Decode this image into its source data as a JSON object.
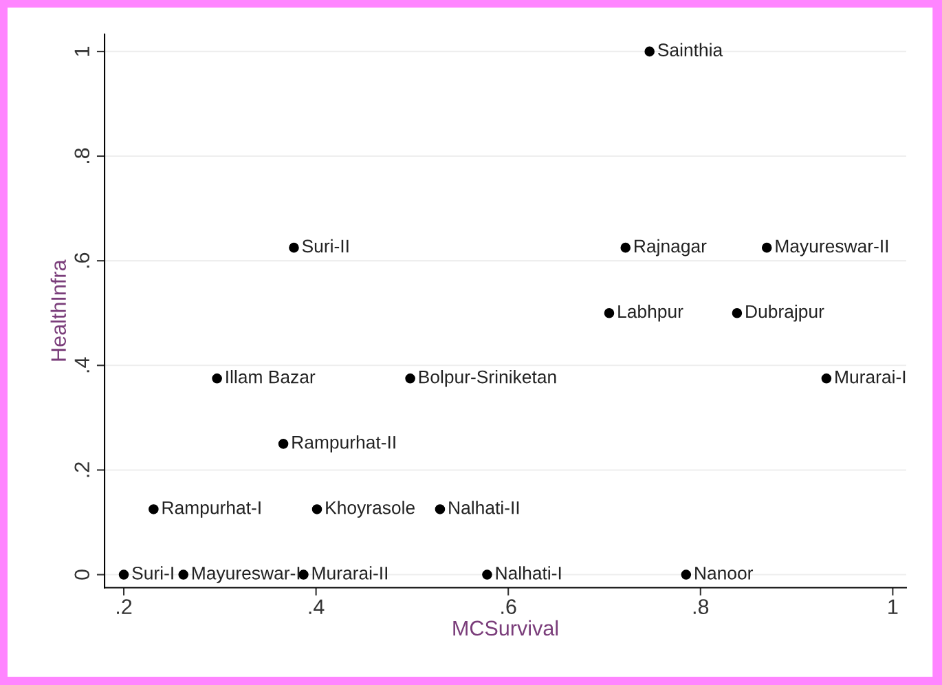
{
  "chart_data": {
    "type": "scatter",
    "xlabel": "MCSurvival",
    "ylabel": "HealthInfra",
    "x": [
      0.747,
      0.377,
      0.722,
      0.869,
      0.705,
      0.838,
      0.297,
      0.498,
      0.931,
      0.366,
      0.231,
      0.401,
      0.529,
      0.2,
      0.262,
      0.387,
      0.578,
      0.785
    ],
    "series": [
      {
        "color": "#000000",
        "values": [
          1,
          0.625,
          0.625,
          0.625,
          0.5,
          0.5,
          0.375,
          0.375,
          0.375,
          0.25,
          0.125,
          0.125,
          0.125,
          0,
          0,
          0,
          0,
          0
        ]
      }
    ],
    "annotations": [
      {
        "text": "Sainthia",
        "x": 0.747,
        "y": 1
      },
      {
        "text": "Suri-II",
        "x": 0.377,
        "y": 0.625
      },
      {
        "text": "Rajnagar",
        "x": 0.722,
        "y": 0.625
      },
      {
        "text": "Mayureswar-II",
        "x": 0.869,
        "y": 0.625
      },
      {
        "text": "Labhpur",
        "x": 0.705,
        "y": 0.5
      },
      {
        "text": "Dubrajpur",
        "x": 0.838,
        "y": 0.5
      },
      {
        "text": "Illam Bazar",
        "x": 0.297,
        "y": 0.375
      },
      {
        "text": "Bolpur-Sriniketan",
        "x": 0.498,
        "y": 0.375
      },
      {
        "text": "Murarai-I",
        "x": 0.931,
        "y": 0.375
      },
      {
        "text": "Rampurhat-II",
        "x": 0.366,
        "y": 0.25
      },
      {
        "text": "Rampurhat-I",
        "x": 0.231,
        "y": 0.125
      },
      {
        "text": "Khoyrasole",
        "x": 0.401,
        "y": 0.125
      },
      {
        "text": "Nalhati-II",
        "x": 0.529,
        "y": 0.125
      },
      {
        "text": "Suri-I",
        "x": 0.2,
        "y": 0
      },
      {
        "text": "Mayureswar-I",
        "x": 0.262,
        "y": 0
      },
      {
        "text": "Murarai-II",
        "x": 0.387,
        "y": 0
      },
      {
        "text": "Nalhati-I",
        "x": 0.578,
        "y": 0
      },
      {
        "text": "Nanoor",
        "x": 0.785,
        "y": 0
      }
    ],
    "xlim": [
      0.18,
      1.014
    ],
    "ylim": [
      -0.025,
      1.033
    ],
    "xticks": [
      {
        "value": 0.2,
        "label": ".2"
      },
      {
        "value": 0.4,
        "label": ".4"
      },
      {
        "value": 0.6,
        "label": ".6"
      },
      {
        "value": 0.8,
        "label": ".8"
      },
      1
    ],
    "yticks": [
      0,
      {
        "value": 0.2,
        "label": ".2"
      },
      {
        "value": 0.4,
        "label": ".4"
      },
      {
        "value": 0.6,
        "label": ".6"
      },
      {
        "value": 0.8,
        "label": ".8"
      },
      1
    ],
    "grid": "y",
    "marker": "circle"
  }
}
